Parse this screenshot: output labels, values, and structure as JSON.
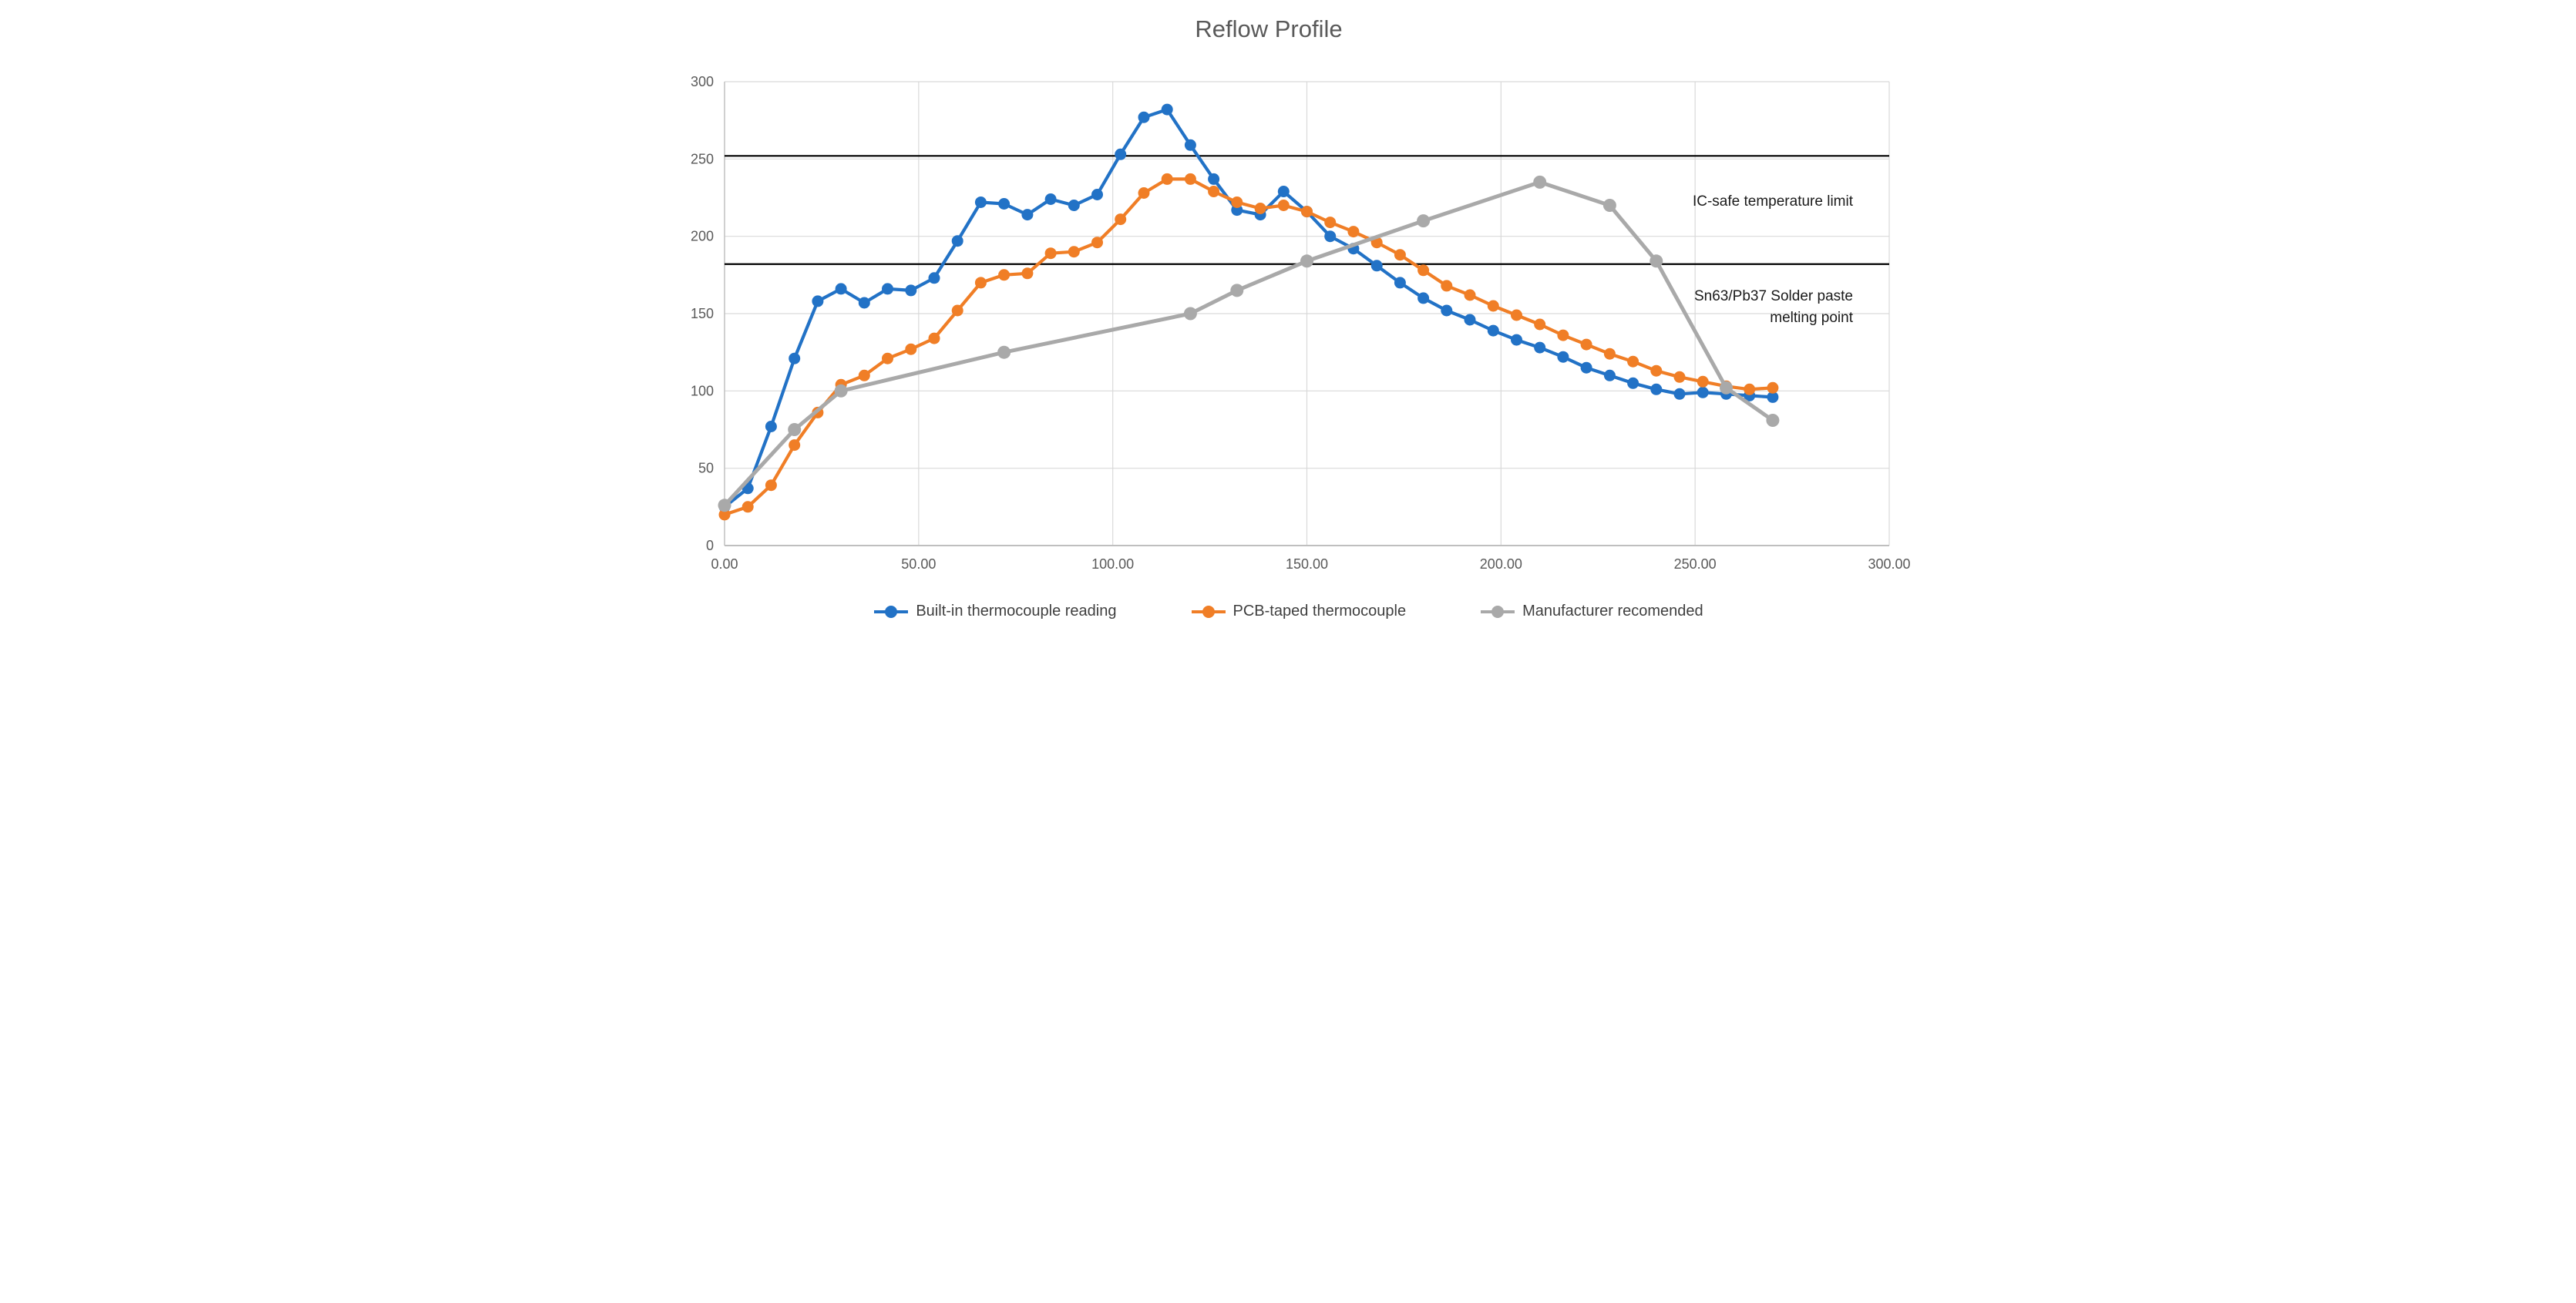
{
  "chart_data": {
    "type": "line",
    "title": "Reflow Profile",
    "xlabel": "",
    "ylabel": "",
    "xlim": [
      0,
      300
    ],
    "ylim": [
      0,
      300
    ],
    "grid": true,
    "legend_position": "bottom",
    "x_ticks": [
      0,
      50,
      100,
      150,
      200,
      250,
      300
    ],
    "x_tick_labels": [
      "0.00",
      "50.00",
      "100.00",
      "150.00",
      "200.00",
      "250.00",
      "300.00"
    ],
    "y_ticks": [
      0,
      50,
      100,
      150,
      200,
      250,
      300
    ],
    "y_tick_labels": [
      "0",
      "50",
      "100",
      "150",
      "200",
      "250",
      "300"
    ],
    "series": [
      {
        "name": "Built-in thermocouple reading",
        "color": "#2272C6",
        "points": [
          [
            0,
            25
          ],
          [
            6,
            37
          ],
          [
            12,
            77
          ],
          [
            18,
            121
          ],
          [
            24,
            158
          ],
          [
            30,
            166
          ],
          [
            36,
            157
          ],
          [
            42,
            166
          ],
          [
            48,
            165
          ],
          [
            54,
            173
          ],
          [
            60,
            197
          ],
          [
            66,
            222
          ],
          [
            72,
            221
          ],
          [
            78,
            214
          ],
          [
            84,
            224
          ],
          [
            90,
            220
          ],
          [
            96,
            227
          ],
          [
            102,
            253
          ],
          [
            108,
            277
          ],
          [
            114,
            282
          ],
          [
            120,
            259
          ],
          [
            126,
            237
          ],
          [
            132,
            217
          ],
          [
            138,
            214
          ],
          [
            144,
            229
          ],
          [
            150,
            216
          ],
          [
            156,
            200
          ],
          [
            162,
            192
          ],
          [
            168,
            181
          ],
          [
            174,
            170
          ],
          [
            180,
            160
          ],
          [
            186,
            152
          ],
          [
            192,
            146
          ],
          [
            198,
            139
          ],
          [
            204,
            133
          ],
          [
            210,
            128
          ],
          [
            216,
            122
          ],
          [
            222,
            115
          ],
          [
            228,
            110
          ],
          [
            234,
            105
          ],
          [
            240,
            101
          ],
          [
            246,
            98
          ],
          [
            252,
            99
          ],
          [
            258,
            98
          ],
          [
            264,
            97
          ],
          [
            270,
            96
          ]
        ]
      },
      {
        "name": "PCB-taped thermocouple",
        "color": "#F07E26",
        "points": [
          [
            0,
            20
          ],
          [
            6,
            25
          ],
          [
            12,
            39
          ],
          [
            18,
            65
          ],
          [
            24,
            86
          ],
          [
            30,
            104
          ],
          [
            36,
            110
          ],
          [
            42,
            121
          ],
          [
            48,
            127
          ],
          [
            54,
            134
          ],
          [
            60,
            152
          ],
          [
            66,
            170
          ],
          [
            72,
            175
          ],
          [
            78,
            176
          ],
          [
            84,
            189
          ],
          [
            90,
            190
          ],
          [
            96,
            196
          ],
          [
            102,
            211
          ],
          [
            108,
            228
          ],
          [
            114,
            237
          ],
          [
            120,
            237
          ],
          [
            126,
            229
          ],
          [
            132,
            222
          ],
          [
            138,
            218
          ],
          [
            144,
            220
          ],
          [
            150,
            216
          ],
          [
            156,
            209
          ],
          [
            162,
            203
          ],
          [
            168,
            196
          ],
          [
            174,
            188
          ],
          [
            180,
            178
          ],
          [
            186,
            168
          ],
          [
            192,
            162
          ],
          [
            198,
            155
          ],
          [
            204,
            149
          ],
          [
            210,
            143
          ],
          [
            216,
            136
          ],
          [
            222,
            130
          ],
          [
            228,
            124
          ],
          [
            234,
            119
          ],
          [
            240,
            113
          ],
          [
            246,
            109
          ],
          [
            252,
            106
          ],
          [
            258,
            103
          ],
          [
            264,
            101
          ],
          [
            270,
            102
          ]
        ]
      },
      {
        "name": "Manufacturer recomended",
        "color": "#A9A9A9",
        "points": [
          [
            0,
            26
          ],
          [
            18,
            75
          ],
          [
            30,
            100
          ],
          [
            72,
            125
          ],
          [
            120,
            150
          ],
          [
            132,
            165
          ],
          [
            150,
            184
          ],
          [
            180,
            210
          ],
          [
            210,
            235
          ],
          [
            228,
            220
          ],
          [
            240,
            184
          ],
          [
            258,
            102
          ],
          [
            270,
            81
          ]
        ]
      }
    ],
    "ref_lines": [
      {
        "value": 252,
        "label": "IC-safe temperature limit",
        "label_lines": [
          "IC-safe temperature limit"
        ]
      },
      {
        "value": 182,
        "label": "Sn63/Pb37 Solder paste melting point",
        "label_lines": [
          "Sn63/Pb37 Solder paste",
          "melting point"
        ]
      }
    ]
  }
}
